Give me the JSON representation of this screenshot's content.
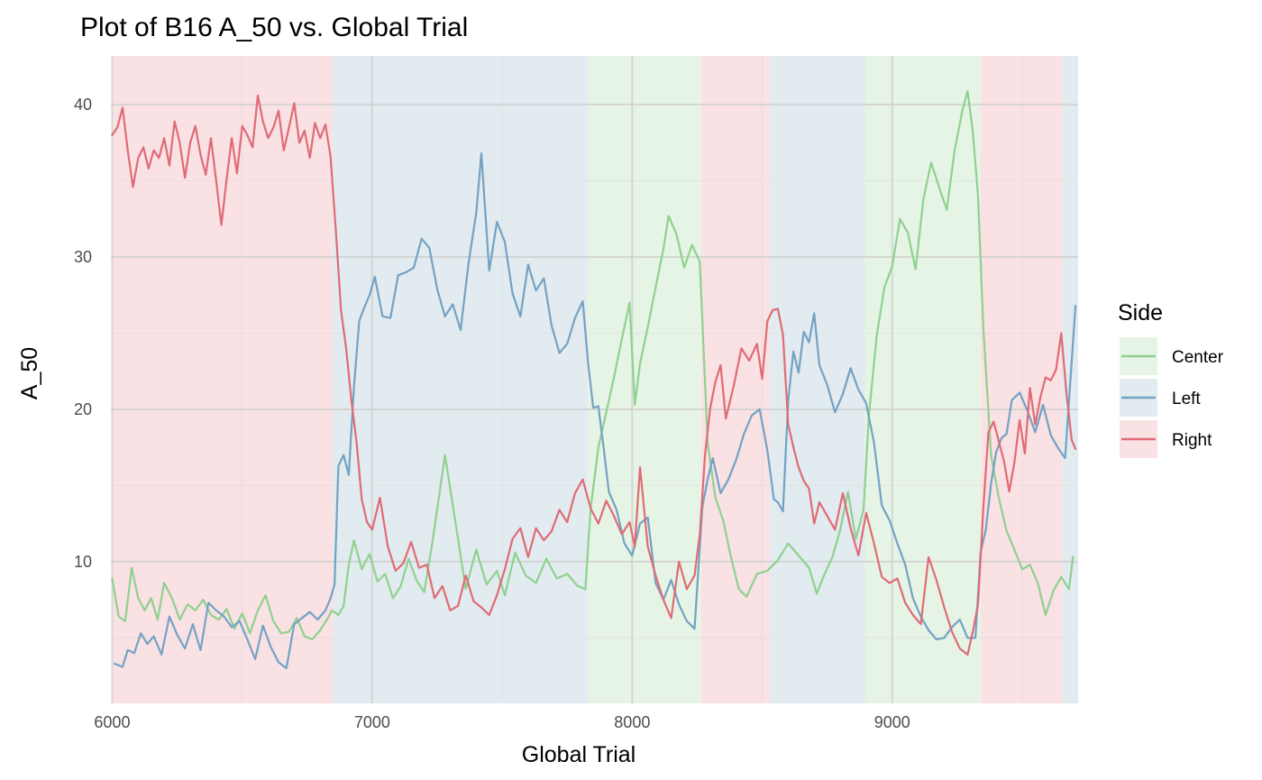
{
  "chart_data": {
    "type": "line",
    "title": "Plot of B16 A_50 vs. Global Trial",
    "xlabel": "Global Trial",
    "ylabel": "A_50",
    "xlim": [
      5995,
      9715
    ],
    "ylim": [
      0.7,
      43.2
    ],
    "x_ticks": [
      6000,
      7000,
      8000,
      9000
    ],
    "x_tick_labels": [
      "6000",
      "7000",
      "8000",
      "9000"
    ],
    "y_ticks": [
      10,
      20,
      30,
      40
    ],
    "y_tick_labels": [
      "10",
      "20",
      "30",
      "40"
    ],
    "grid": true,
    "legend": {
      "title": "Side",
      "position": "right",
      "entries": [
        {
          "label": "Center",
          "color": "#8fd18f",
          "fill": "#e6f4e6"
        },
        {
          "label": "Left",
          "color": "#74a2c4",
          "fill": "#e2ebef"
        },
        {
          "label": "Right",
          "color": "#e06b76",
          "fill": "#f9e1e4"
        }
      ]
    },
    "background_blocks": [
      {
        "side": "Right",
        "x_start": 6000,
        "x_end": 6850
      },
      {
        "side": "Left",
        "x_start": 6850,
        "x_end": 7830
      },
      {
        "side": "Center",
        "x_start": 7830,
        "x_end": 8265
      },
      {
        "side": "Right",
        "x_start": 8265,
        "x_end": 8530
      },
      {
        "side": "Left",
        "x_start": 8530,
        "x_end": 8895
      },
      {
        "side": "Center",
        "x_start": 8895,
        "x_end": 9340
      },
      {
        "side": "Right",
        "x_start": 9340,
        "x_end": 9655
      },
      {
        "side": "Left",
        "x_start": 9655,
        "x_end": 9715
      }
    ],
    "series": [
      {
        "name": "Center",
        "color": "#8fd18f",
        "x": [
          6000,
          6025,
          6050,
          6075,
          6100,
          6125,
          6150,
          6175,
          6200,
          6230,
          6260,
          6290,
          6320,
          6350,
          6380,
          6410,
          6440,
          6470,
          6500,
          6530,
          6560,
          6590,
          6620,
          6650,
          6680,
          6710,
          6740,
          6770,
          6800,
          6830,
          6845,
          6870,
          6890,
          6910,
          6930,
          6960,
          6990,
          7020,
          7050,
          7080,
          7110,
          7140,
          7170,
          7200,
          7230,
          7260,
          7280,
          7300,
          7330,
          7360,
          7400,
          7440,
          7480,
          7510,
          7550,
          7590,
          7630,
          7670,
          7710,
          7750,
          7790,
          7820,
          7840,
          7870,
          7900,
          7930,
          7960,
          7990,
          8010,
          8030,
          8060,
          8090,
          8120,
          8140,
          8170,
          8200,
          8230,
          8260,
          8290,
          8320,
          8350,
          8380,
          8410,
          8440,
          8480,
          8520,
          8560,
          8600,
          8640,
          8680,
          8710,
          8740,
          8770,
          8800,
          8830,
          8860,
          8890,
          8910,
          8940,
          8970,
          9000,
          9030,
          9060,
          9090,
          9120,
          9150,
          9180,
          9210,
          9240,
          9270,
          9290,
          9310,
          9330,
          9350,
          9380,
          9410,
          9440,
          9470,
          9500,
          9530,
          9560,
          9590,
          9620,
          9650,
          9680,
          9695
        ],
        "values": [
          8.9,
          6.4,
          6.1,
          9.6,
          7.6,
          6.8,
          7.6,
          6.2,
          8.6,
          7.6,
          6.2,
          7.2,
          6.8,
          7.5,
          6.5,
          6.2,
          6.9,
          5.6,
          6.6,
          5.3,
          6.8,
          7.8,
          6.1,
          5.3,
          5.4,
          6.3,
          5.1,
          4.9,
          5.5,
          6.3,
          6.8,
          6.5,
          7.1,
          9.8,
          11.4,
          9.5,
          10.5,
          8.7,
          9.2,
          7.6,
          8.4,
          10.2,
          8.8,
          8.0,
          11.1,
          14.6,
          17.0,
          14.8,
          11.5,
          8.2,
          10.8,
          8.5,
          9.4,
          7.8,
          10.6,
          9.1,
          8.6,
          10.2,
          8.9,
          9.2,
          8.4,
          8.2,
          13.5,
          17.5,
          19.8,
          22.1,
          24.6,
          27.0,
          20.3,
          23.0,
          25.4,
          28.0,
          30.5,
          32.7,
          31.5,
          29.3,
          30.8,
          29.7,
          17.8,
          14.2,
          12.7,
          10.3,
          8.2,
          7.7,
          9.2,
          9.4,
          10.1,
          11.2,
          10.4,
          9.6,
          7.9,
          9.2,
          10.3,
          12.1,
          14.6,
          11.5,
          13.4,
          19.5,
          24.8,
          28.0,
          29.4,
          32.5,
          31.6,
          29.2,
          33.8,
          36.2,
          34.6,
          33.1,
          37.0,
          39.6,
          40.9,
          38.2,
          34.0,
          25.5,
          17.0,
          14.2,
          12.0,
          10.8,
          9.5,
          9.8,
          8.6,
          6.5,
          8.1,
          9.0,
          8.2,
          10.3
        ]
      },
      {
        "name": "Left",
        "color": "#74a2c4",
        "x": [
          6010,
          6040,
          6060,
          6085,
          6110,
          6135,
          6160,
          6190,
          6220,
          6250,
          6280,
          6310,
          6340,
          6370,
          6400,
          6430,
          6460,
          6490,
          6520,
          6550,
          6580,
          6610,
          6640,
          6670,
          6700,
          6730,
          6760,
          6790,
          6820,
          6840,
          6855,
          6870,
          6890,
          6910,
          6930,
          6950,
          6970,
          6990,
          7010,
          7040,
          7070,
          7100,
          7130,
          7160,
          7190,
          7220,
          7250,
          7280,
          7310,
          7340,
          7370,
          7400,
          7420,
          7450,
          7480,
          7510,
          7540,
          7570,
          7600,
          7630,
          7660,
          7690,
          7720,
          7750,
          7780,
          7810,
          7830,
          7850,
          7870,
          7890,
          7910,
          7940,
          7970,
          8000,
          8030,
          8060,
          8090,
          8120,
          8150,
          8180,
          8210,
          8240,
          8270,
          8290,
          8310,
          8340,
          8370,
          8400,
          8430,
          8460,
          8490,
          8520,
          8545,
          8560,
          8580,
          8600,
          8620,
          8640,
          8660,
          8680,
          8700,
          8720,
          8750,
          8780,
          8810,
          8840,
          8870,
          8900,
          8930,
          8960,
          8990,
          9020,
          9050,
          9080,
          9110,
          9140,
          9170,
          9200,
          9230,
          9260,
          9290,
          9320,
          9340,
          9360,
          9380,
          9400,
          9420,
          9440,
          9460,
          9490,
          9520,
          9550,
          9580,
          9610,
          9640,
          9665,
          9685,
          9705
        ],
        "values": [
          3.3,
          3.1,
          4.2,
          4.0,
          5.3,
          4.6,
          5.1,
          3.9,
          6.4,
          5.2,
          4.3,
          5.9,
          4.2,
          7.3,
          6.8,
          6.4,
          5.7,
          6.1,
          4.9,
          3.6,
          5.8,
          4.4,
          3.4,
          3.0,
          5.9,
          6.3,
          6.7,
          6.2,
          6.8,
          7.6,
          8.5,
          16.3,
          17.0,
          15.7,
          21.5,
          25.8,
          26.7,
          27.5,
          28.7,
          26.1,
          26.0,
          28.8,
          29.0,
          29.3,
          31.2,
          30.6,
          27.9,
          26.1,
          26.9,
          25.2,
          29.5,
          32.9,
          36.8,
          29.1,
          32.3,
          31.0,
          27.6,
          26.1,
          29.5,
          27.8,
          28.6,
          25.5,
          23.7,
          24.3,
          26.0,
          27.1,
          23.1,
          20.1,
          20.2,
          17.5,
          14.6,
          13.4,
          11.2,
          10.4,
          12.5,
          12.9,
          8.6,
          7.5,
          8.8,
          7.2,
          6.1,
          5.6,
          13.6,
          15.4,
          16.8,
          14.5,
          15.4,
          16.7,
          18.4,
          19.6,
          20.0,
          17.3,
          14.1,
          13.9,
          13.3,
          20.6,
          23.8,
          22.4,
          25.1,
          24.4,
          26.3,
          22.9,
          21.6,
          19.8,
          21.0,
          22.7,
          21.3,
          20.4,
          17.8,
          13.7,
          12.7,
          11.2,
          9.8,
          7.6,
          6.4,
          5.5,
          4.9,
          5.0,
          5.7,
          6.2,
          5.0,
          5.0,
          10.6,
          12.1,
          15.1,
          17.2,
          18.1,
          18.4,
          20.6,
          21.1,
          19.9,
          18.5,
          20.3,
          18.3,
          17.4,
          16.8,
          21.8,
          26.8
        ]
      },
      {
        "name": "Right",
        "color": "#e06b76",
        "x": [
          6000,
          6020,
          6040,
          6060,
          6080,
          6100,
          6120,
          6140,
          6160,
          6180,
          6200,
          6220,
          6240,
          6260,
          6280,
          6300,
          6320,
          6340,
          6360,
          6380,
          6400,
          6420,
          6440,
          6460,
          6480,
          6500,
          6520,
          6540,
          6560,
          6580,
          6600,
          6620,
          6640,
          6660,
          6680,
          6700,
          6720,
          6740,
          6760,
          6780,
          6800,
          6820,
          6840,
          6860,
          6880,
          6900,
          6920,
          6940,
          6960,
          6980,
          7000,
          7030,
          7060,
          7090,
          7120,
          7150,
          7180,
          7210,
          7240,
          7270,
          7300,
          7330,
          7360,
          7390,
          7420,
          7450,
          7480,
          7510,
          7540,
          7570,
          7600,
          7630,
          7660,
          7690,
          7720,
          7750,
          7780,
          7810,
          7840,
          7870,
          7900,
          7930,
          7960,
          7990,
          8010,
          8030,
          8060,
          8090,
          8120,
          8150,
          8180,
          8210,
          8240,
          8260,
          8280,
          8300,
          8320,
          8340,
          8360,
          8390,
          8420,
          8450,
          8480,
          8500,
          8520,
          8540,
          8560,
          8580,
          8600,
          8620,
          8640,
          8660,
          8680,
          8700,
          8720,
          8750,
          8780,
          8810,
          8840,
          8870,
          8900,
          8930,
          8960,
          8990,
          9020,
          9050,
          9080,
          9110,
          9140,
          9170,
          9200,
          9230,
          9260,
          9290,
          9310,
          9330,
          9350,
          9370,
          9390,
          9410,
          9430,
          9450,
          9470,
          9490,
          9510,
          9530,
          9550,
          9570,
          9590,
          9610,
          9630,
          9650,
          9670,
          9690,
          9705
        ],
        "values": [
          38.0,
          38.5,
          39.8,
          37.0,
          34.6,
          36.5,
          37.2,
          35.8,
          37.0,
          36.5,
          37.8,
          36.0,
          38.9,
          37.5,
          35.2,
          37.5,
          38.6,
          36.7,
          35.4,
          37.8,
          35.0,
          32.1,
          35.1,
          37.8,
          35.5,
          38.6,
          38.0,
          37.2,
          40.6,
          38.9,
          37.8,
          38.5,
          39.6,
          37.0,
          38.5,
          40.1,
          37.5,
          38.3,
          36.5,
          38.8,
          37.8,
          38.7,
          36.6,
          31.8,
          26.5,
          24.0,
          20.6,
          17.8,
          14.1,
          12.6,
          12.1,
          14.2,
          11.0,
          9.4,
          9.9,
          11.3,
          9.6,
          9.8,
          7.6,
          8.4,
          6.8,
          7.1,
          9.1,
          7.4,
          7.0,
          6.5,
          7.8,
          9.5,
          11.5,
          12.2,
          10.3,
          12.2,
          11.4,
          12.0,
          13.4,
          12.6,
          14.5,
          15.4,
          13.5,
          12.5,
          14.0,
          13.0,
          11.8,
          12.6,
          11.0,
          16.2,
          11.0,
          9.1,
          7.5,
          6.3,
          10.0,
          8.2,
          9.1,
          11.8,
          17.0,
          20.1,
          21.8,
          22.9,
          19.4,
          21.5,
          24.0,
          23.2,
          24.3,
          22.0,
          25.8,
          26.5,
          26.6,
          24.9,
          19.0,
          17.5,
          16.2,
          15.3,
          14.8,
          12.5,
          13.9,
          13.0,
          12.1,
          14.5,
          12.2,
          10.4,
          13.2,
          11.2,
          9.0,
          8.6,
          8.9,
          7.3,
          6.5,
          5.9,
          10.3,
          8.8,
          7.0,
          5.4,
          4.3,
          3.9,
          5.4,
          7.2,
          13.4,
          18.5,
          19.2,
          17.9,
          16.6,
          14.6,
          16.5,
          19.3,
          17.1,
          21.4,
          19.0,
          20.8,
          22.1,
          21.9,
          22.6,
          25.0,
          21.1,
          18.0,
          17.4
        ]
      }
    ]
  }
}
